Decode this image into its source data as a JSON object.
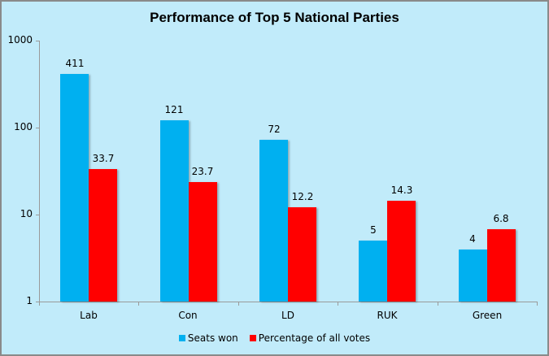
{
  "chart_data": {
    "type": "bar",
    "title": "Performance of Top 5 National Parties",
    "xlabel": "",
    "ylabel": "",
    "yscale": "log",
    "ylim": [
      1,
      1000
    ],
    "yticks": [
      1,
      10,
      100,
      1000
    ],
    "ytick_labels": [
      "1",
      "10",
      "100",
      "1000"
    ],
    "grid": false,
    "legend_position": "bottom",
    "categories": [
      "Lab",
      "Con",
      "LD",
      "RUK",
      "Green"
    ],
    "series": [
      {
        "name": "Seats won",
        "color": "#00b0f0",
        "values": [
          411,
          121,
          72,
          5,
          4
        ],
        "labels": [
          "411",
          "121",
          "72",
          "5",
          "4"
        ]
      },
      {
        "name": "Percentage of all votes",
        "color": "#ff0000",
        "values": [
          33.7,
          23.7,
          12.2,
          14.3,
          6.8
        ],
        "labels": [
          "33.7",
          "23.7",
          "12.2",
          "14.3",
          "6.8"
        ]
      }
    ]
  },
  "colors": {
    "background": "#c1ebfa",
    "border": "#8a8a8a",
    "axis": "#9a9a9a"
  }
}
